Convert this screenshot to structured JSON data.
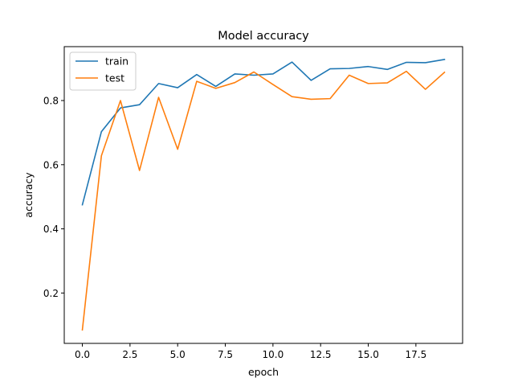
{
  "chart_data": {
    "type": "line",
    "title": "Model accuracy",
    "xlabel": "epoch",
    "ylabel": "accuracy",
    "xlim": [
      -0.95,
      19.95
    ],
    "ylim": [
      0.043,
      0.968
    ],
    "xticks": [
      0,
      2.5,
      5,
      7.5,
      10,
      12.5,
      15,
      17.5
    ],
    "xtick_labels": [
      "0.0",
      "2.5",
      "5.0",
      "7.5",
      "10.0",
      "12.5",
      "15.0",
      "17.5"
    ],
    "yticks": [
      0.2,
      0.4,
      0.6,
      0.8
    ],
    "ytick_labels": [
      "0.2",
      "0.4",
      "0.6",
      "0.8"
    ],
    "grid": false,
    "legend_position": "top-left",
    "x": [
      0,
      1,
      2,
      3,
      4,
      5,
      6,
      7,
      8,
      9,
      10,
      11,
      12,
      13,
      14,
      15,
      16,
      17,
      18,
      19
    ],
    "series": [
      {
        "name": "train",
        "color": "#1f77b4",
        "values": [
          0.475,
          0.703,
          0.777,
          0.787,
          0.853,
          0.84,
          0.881,
          0.844,
          0.883,
          0.879,
          0.883,
          0.92,
          0.863,
          0.899,
          0.9,
          0.906,
          0.897,
          0.919,
          0.918,
          0.928
        ]
      },
      {
        "name": "test",
        "color": "#ff7f0e",
        "values": [
          0.085,
          0.628,
          0.8,
          0.582,
          0.81,
          0.648,
          0.86,
          0.838,
          0.856,
          0.889,
          0.85,
          0.812,
          0.804,
          0.806,
          0.879,
          0.853,
          0.855,
          0.891,
          0.835,
          0.888
        ]
      }
    ]
  }
}
